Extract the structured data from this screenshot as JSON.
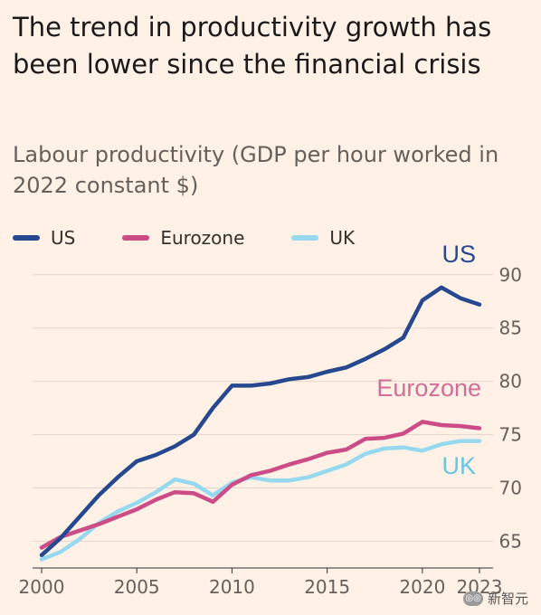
{
  "title": "The trend in productivity growth has been lower since the financial crisis",
  "subtitle": "Labour productivity (GDP per hour worked in 2022 constant $)",
  "watermark": "新智元",
  "colors": {
    "background": "#fff1e5",
    "grid": "#e3d5c9",
    "axis_text": "#66605c"
  },
  "chart_data": {
    "type": "line",
    "title": "The trend in productivity growth has been lower since the financial crisis",
    "ylabel": "Labour productivity (GDP per hour worked in 2022 constant $)",
    "xlabel": "",
    "x": [
      2000,
      2001,
      2002,
      2003,
      2004,
      2005,
      2006,
      2007,
      2008,
      2009,
      2010,
      2011,
      2012,
      2013,
      2014,
      2015,
      2016,
      2017,
      2018,
      2019,
      2020,
      2021,
      2022,
      2023
    ],
    "xlim": [
      2000,
      2023
    ],
    "ylim": [
      63,
      91
    ],
    "x_ticks": [
      {
        "value": 2000,
        "label": "2000"
      },
      {
        "value": 2005,
        "label": "2005"
      },
      {
        "value": 2010,
        "label": "2010"
      },
      {
        "value": 2015,
        "label": "2015"
      },
      {
        "value": 2020,
        "label": "2020"
      },
      {
        "value": 2023,
        "label": "2023"
      }
    ],
    "y_ticks": [
      65,
      70,
      75,
      80,
      85,
      90
    ],
    "grid": "horizontal",
    "legend_position": "top-left",
    "series": [
      {
        "name": "US",
        "color": "#25488f",
        "label": "US",
        "label_color": "#25488f",
        "values": [
          63.7,
          65.3,
          67.3,
          69.3,
          71.0,
          72.5,
          73.1,
          73.9,
          75.0,
          77.5,
          79.6,
          79.6,
          79.8,
          80.2,
          80.4,
          80.9,
          81.3,
          82.1,
          83.0,
          84.1,
          87.6,
          88.8,
          87.8,
          87.2
        ]
      },
      {
        "name": "Eurozone",
        "color": "#cc4c87",
        "label": "Eurozone",
        "label_color": "#d06e99",
        "values": [
          64.4,
          65.4,
          66.0,
          66.6,
          67.3,
          68.0,
          68.9,
          69.6,
          69.5,
          68.7,
          70.3,
          71.2,
          71.6,
          72.2,
          72.7,
          73.3,
          73.6,
          74.6,
          74.7,
          75.1,
          76.2,
          75.9,
          75.8,
          75.6
        ]
      },
      {
        "name": "UK",
        "color": "#96d9ef",
        "label": "UK",
        "label_color": "#66c6e6",
        "values": [
          63.3,
          64.0,
          65.2,
          66.7,
          67.8,
          68.6,
          69.6,
          70.8,
          70.4,
          69.3,
          70.5,
          71.0,
          70.7,
          70.7,
          71.0,
          71.6,
          72.2,
          73.2,
          73.7,
          73.8,
          73.5,
          74.1,
          74.4,
          74.4
        ]
      }
    ]
  }
}
